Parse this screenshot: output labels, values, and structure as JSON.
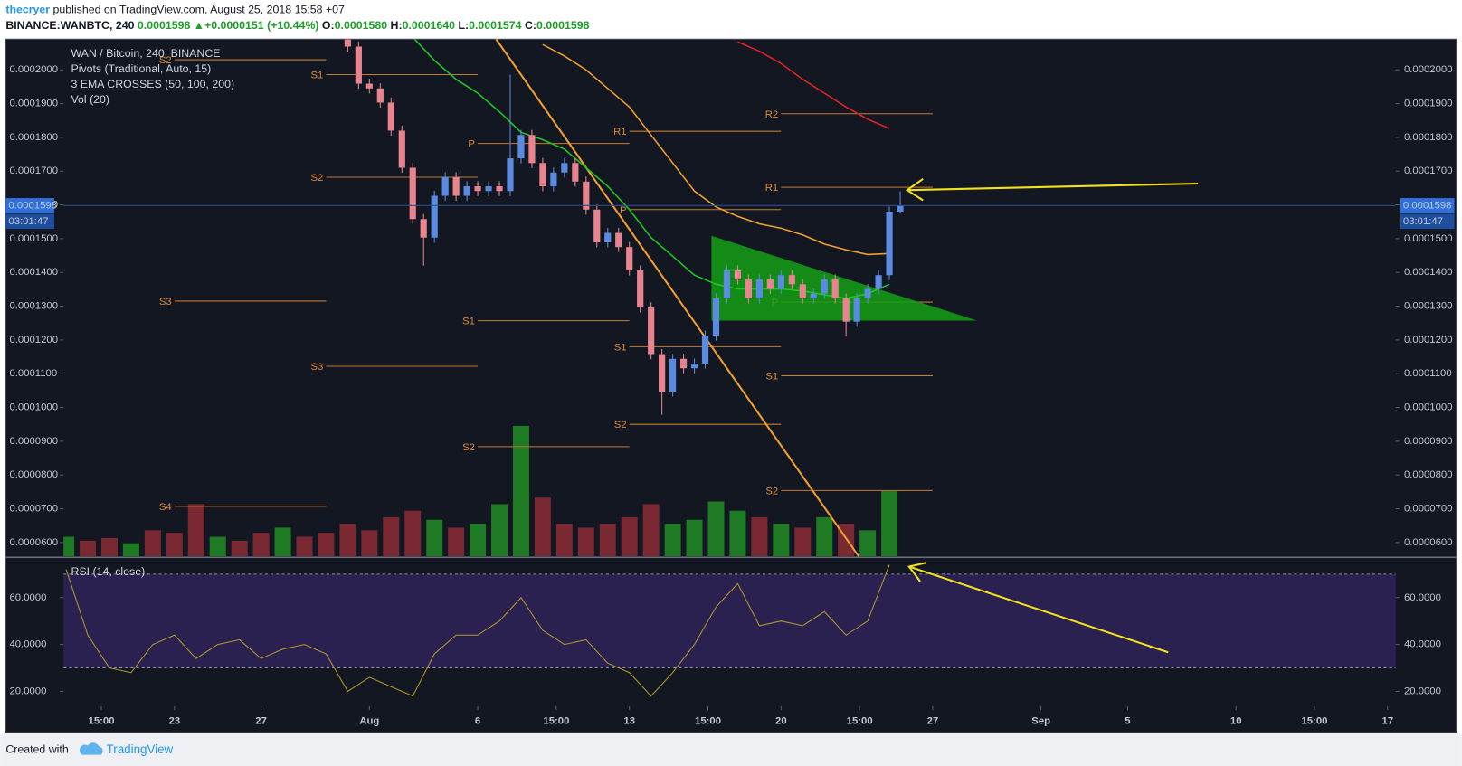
{
  "header": {
    "author": "thecryer",
    "published": "published on TradingView.com, August 25, 2018 15:58 +07",
    "symbol": "BINANCE:WANBTC, 240",
    "last": "0.0001598",
    "arrow": "▲",
    "change": "+0.0000151 (+10.44%)",
    "open_label": "O:",
    "open": "0.0001580",
    "high_label": "H:",
    "high": "0.0001640",
    "low_label": "L:",
    "low": "0.0001574",
    "close_label": "C:",
    "close": "0.0001598"
  },
  "countdown": "03:01:47",
  "footer": {
    "created_with": "Created with",
    "brand": "TradingView"
  },
  "chart_data": [
    {
      "type": "candlestick",
      "legend": [
        "WAN / Bitcoin, 240, BINANCE",
        "Pivots (Traditional, Auto, 15)",
        "3 EMA CROSSES (50, 100, 200)",
        "Vol (20)"
      ],
      "up_color": "#5b8be0",
      "down_color": "#e8848f",
      "xlim": [
        17.88,
        79.37
      ],
      "ylim": [
        5.59e-05,
        0.0002091
      ],
      "yticks": [
        {
          "value": 0.0002,
          "label": "0.0002000"
        },
        {
          "value": 0.00019,
          "label": "0.0001900"
        },
        {
          "value": 0.00018,
          "label": "0.0001800"
        },
        {
          "value": 0.00017,
          "label": "0.0001700"
        },
        {
          "value": 0.00016,
          "label": "0.0001600"
        },
        {
          "value": 0.00015,
          "label": "0.0001500"
        },
        {
          "value": 0.00014,
          "label": "0.0001400"
        },
        {
          "value": 0.00013,
          "label": "0.0001300"
        },
        {
          "value": 0.00012,
          "label": "0.0001200"
        },
        {
          "value": 0.00011,
          "label": "0.0001100"
        },
        {
          "value": 0.0001,
          "label": "0.0001000"
        },
        {
          "value": 9e-05,
          "label": "0.0000900"
        },
        {
          "value": 8e-05,
          "label": "0.0000800"
        },
        {
          "value": 7e-05,
          "label": "0.0000700"
        },
        {
          "value": 6e-05,
          "label": "0.0000600"
        }
      ],
      "x": [
        31,
        31.5,
        32,
        32.5,
        33,
        33.5,
        34,
        34.5,
        35,
        35.5,
        36,
        36.5,
        37,
        37.5,
        38,
        38.5,
        39,
        39.5,
        40,
        40.5,
        41,
        41.5,
        42,
        42.5,
        43,
        43.5,
        44,
        44.5,
        45,
        45.5,
        46,
        46.5,
        47,
        47.5,
        48,
        48.5,
        49,
        49.5,
        50,
        50.5,
        51,
        51.5,
        52,
        52.5,
        53,
        53.5,
        54,
        54.5,
        55,
        55.5,
        56,
        56.5
      ],
      "open": [
        0.000209,
        0.0002069,
        0.0001959,
        0.0001945,
        0.0001903,
        0.000182,
        0.000171,
        0.0001558,
        0.0001503,
        0.0001627,
        0.0001682,
        0.0001627,
        0.0001655,
        0.0001641,
        0.0001655,
        0.0001641,
        0.0001738,
        0.0001807,
        0.0001724,
        0.0001655,
        0.0001696,
        0.0001724,
        0.0001669,
        0.0001586,
        0.0001489,
        0.0001517,
        0.0001475,
        0.0001406,
        0.0001296,
        0.0001158,
        0.0001047,
        0.0001144,
        0.0001116,
        0.000113,
        0.0001213,
        0.0001323,
        0.0001406,
        0.0001379,
        0.0001323,
        0.0001379,
        0.0001351,
        0.0001392,
        0.0001365,
        0.0001323,
        0.0001337,
        0.0001379,
        0.0001323,
        0.0001254,
        0.0001323,
        0.0001351,
        0.0001392,
        0.000158
      ],
      "high": [
        0.0002105,
        0.0002084,
        0.0001974,
        0.000196,
        0.0001918,
        0.0001835,
        0.0001725,
        0.0001573,
        0.0001642,
        0.0001697,
        0.0001697,
        0.000167,
        0.000167,
        0.000167,
        0.000167,
        0.0001986,
        0.0001822,
        0.0001822,
        0.0001739,
        0.0001711,
        0.0001739,
        0.0001739,
        0.0001684,
        0.0001601,
        0.0001532,
        0.0001532,
        0.000149,
        0.0001421,
        0.0001311,
        0.0001173,
        0.0001159,
        0.0001159,
        0.0001145,
        0.0001228,
        0.0001338,
        0.0001421,
        0.0001421,
        0.0001394,
        0.0001394,
        0.0001394,
        0.0001407,
        0.0001407,
        0.000138,
        0.0001352,
        0.0001394,
        0.0001394,
        0.0001338,
        0.0001338,
        0.0001366,
        0.0001407,
        0.0001595,
        0.000164
      ],
      "low": [
        0.0002054,
        0.0001944,
        0.000193,
        0.0001888,
        0.0001805,
        0.0001695,
        0.0001543,
        0.000142,
        0.0001488,
        0.0001612,
        0.0001612,
        0.0001612,
        0.0001626,
        0.0001626,
        0.0001626,
        0.0001626,
        0.0001723,
        0.0001709,
        0.000164,
        0.000164,
        0.0001681,
        0.0001654,
        0.0001571,
        0.0001474,
        0.0001474,
        0.000146,
        0.0001391,
        0.0001281,
        0.0001143,
        9.78e-05,
        0.0001032,
        0.0001101,
        0.0001101,
        0.0001115,
        0.0001198,
        0.0001308,
        0.0001364,
        0.0001308,
        0.0001308,
        0.0001336,
        0.0001336,
        0.000135,
        0.0001308,
        0.0001308,
        0.0001322,
        0.0001308,
        0.000121,
        0.0001239,
        0.0001308,
        0.0001336,
        0.0001377,
        0.0001574
      ],
      "close": [
        0.0002069,
        0.0001959,
        0.0001945,
        0.0001903,
        0.000182,
        0.000171,
        0.0001558,
        0.0001503,
        0.0001627,
        0.0001682,
        0.0001627,
        0.0001655,
        0.0001641,
        0.0001655,
        0.0001641,
        0.0001738,
        0.0001807,
        0.0001724,
        0.0001655,
        0.0001696,
        0.0001724,
        0.0001669,
        0.0001586,
        0.0001489,
        0.0001517,
        0.0001475,
        0.0001406,
        0.0001296,
        0.0001158,
        0.0001047,
        0.0001144,
        0.0001116,
        0.000113,
        0.0001213,
        0.0001323,
        0.0001406,
        0.0001379,
        0.0001323,
        0.0001379,
        0.0001351,
        0.0001392,
        0.0001365,
        0.0001323,
        0.0001337,
        0.0001379,
        0.0001323,
        0.0001254,
        0.0001323,
        0.0001351,
        0.0001392,
        0.000158,
        0.0001598
      ],
      "lines": [
        {
          "color": "#22c722",
          "x": [
            34,
            35,
            36,
            37,
            38,
            39,
            40,
            41,
            42,
            43,
            44,
            45,
            46,
            47,
            48,
            49,
            50,
            51,
            52,
            53,
            54,
            55,
            56
          ],
          "values": [
            0.0002097,
            0.0002028,
            0.0001972,
            0.0001931,
            0.0001876,
            0.0001815,
            0.0001793,
            0.0001765,
            0.000171,
            0.0001655,
            0.0001586,
            0.0001503,
            0.0001448,
            0.0001392,
            0.0001365,
            0.0001351,
            0.0001351,
            0.0001351,
            0.0001345,
            0.0001334,
            0.0001323,
            0.0001337,
            0.0001365
          ]
        },
        {
          "color": "#f0a030",
          "x": [
            40,
            41,
            42,
            43,
            44,
            45,
            46,
            47,
            48,
            49,
            50,
            51,
            52,
            53,
            54,
            55,
            56
          ],
          "values": [
            0.0002075,
            0.0002041,
            0.0002,
            0.0001945,
            0.000189,
            0.0001807,
            0.0001724,
            0.0001641,
            0.0001594,
            0.0001566,
            0.0001544,
            0.0001531,
            0.0001511,
            0.0001484,
            0.0001467,
            0.0001453,
            0.0001456
          ]
        },
        {
          "color": "#e02424",
          "x": [
            49,
            50,
            51,
            52,
            53,
            54,
            55,
            56
          ],
          "values": [
            0.0002083,
            0.0002055,
            0.0002019,
            0.0001972,
            0.0001931,
            0.000189,
            0.0001854,
            0.0001826
          ]
        }
      ],
      "pivot_color": "#c47a34",
      "pivots": [
        {
          "label": "S2",
          "value": 0.000203,
          "x": [
            23,
            30
          ]
        },
        {
          "label": "S3",
          "value": 0.0001315,
          "x": [
            23,
            30
          ]
        },
        {
          "label": "S4",
          "value": 7.07e-05,
          "x": [
            23,
            30
          ]
        },
        {
          "label": "S1",
          "value": 0.0001986,
          "x": [
            30,
            37
          ]
        },
        {
          "label": "S2",
          "value": 0.0001682,
          "x": [
            30,
            37
          ]
        },
        {
          "label": "S3",
          "value": 0.0001122,
          "x": [
            30,
            37
          ]
        },
        {
          "label": "P",
          "value": 0.0001782,
          "x": [
            37,
            44
          ]
        },
        {
          "label": "S1",
          "value": 0.0001257,
          "x": [
            37,
            44
          ]
        },
        {
          "label": "S2",
          "value": 8.84e-05,
          "x": [
            37,
            44
          ]
        },
        {
          "label": "R1",
          "value": 0.0001818,
          "x": [
            44,
            51
          ]
        },
        {
          "label": "P",
          "value": 0.0001586,
          "x": [
            44,
            51
          ]
        },
        {
          "label": "S1",
          "value": 0.000118,
          "x": [
            44,
            51
          ]
        },
        {
          "label": "S2",
          "value": 9.5e-05,
          "x": [
            44,
            51
          ]
        },
        {
          "label": "R2",
          "value": 0.000187,
          "x": [
            51,
            58
          ]
        },
        {
          "label": "R1",
          "value": 0.0001652,
          "x": [
            51,
            58
          ]
        },
        {
          "label": "P",
          "value": 0.0001312,
          "x": [
            51,
            58
          ]
        },
        {
          "label": "S1",
          "value": 0.0001094,
          "x": [
            51,
            58
          ]
        },
        {
          "label": "S2",
          "value": 7.54e-05,
          "x": [
            51,
            58
          ]
        }
      ]
    },
    {
      "type": "bar",
      "xlim": [
        17.88,
        79.37
      ],
      "ylim": [
        0,
        100
      ],
      "x": [
        18,
        19,
        20,
        21,
        22,
        23,
        24,
        25,
        26,
        27,
        28,
        29,
        30,
        31,
        32,
        33,
        34,
        35,
        36,
        37,
        38,
        39,
        40,
        41,
        42,
        43,
        44,
        45,
        46,
        47,
        48,
        49,
        50,
        51,
        52,
        53,
        54,
        55,
        56
      ],
      "values": [
        15,
        12,
        14,
        10,
        20,
        18,
        40,
        15,
        12,
        18,
        22,
        15,
        18,
        25,
        20,
        30,
        35,
        28,
        22,
        25,
        40,
        100,
        45,
        25,
        22,
        25,
        30,
        40,
        25,
        28,
        42,
        35,
        30,
        25,
        22,
        30,
        25,
        20,
        50
      ],
      "colors": [
        "#1f7a24",
        "#7a2832",
        "#7a2832",
        "#1f7a24",
        "#7a2832",
        "#7a2832",
        "#7a2832",
        "#1f7a24",
        "#7a2832",
        "#7a2832",
        "#1f7a24",
        "#7a2832",
        "#7a2832",
        "#7a2832",
        "#7a2832",
        "#7a2832",
        "#7a2832",
        "#1f7a24",
        "#7a2832",
        "#1f7a24",
        "#1f7a24",
        "#1f7a24",
        "#7a2832",
        "#7a2832",
        "#7a2832",
        "#7a2832",
        "#7a2832",
        "#7a2832",
        "#1f7a24",
        "#1f7a24",
        "#1f7a24",
        "#1f7a24",
        "#7a2832",
        "#1f7a24",
        "#7a2832",
        "#1f7a24",
        "#7a2832",
        "#1f7a24",
        "#1f7a24"
      ]
    },
    {
      "type": "line",
      "legend": "RSI (14, close)",
      "color": "#b39a2c",
      "band_color": "#2b2150",
      "xlim": [
        17.88,
        79.37
      ],
      "ylim": [
        13.6,
        76.8
      ],
      "band": [
        30,
        70
      ],
      "yticks": [
        {
          "value": 60,
          "label": "60.0000"
        },
        {
          "value": 40,
          "label": "40.0000"
        },
        {
          "value": 20,
          "label": "20.0000"
        }
      ],
      "xticks": [
        {
          "value": 19.625,
          "label": "15:00"
        },
        {
          "value": 23,
          "label": "23"
        },
        {
          "value": 27,
          "label": "27"
        },
        {
          "value": 32,
          "label": "Aug"
        },
        {
          "value": 37,
          "label": "6"
        },
        {
          "value": 40.625,
          "label": "15:00"
        },
        {
          "value": 44,
          "label": "13"
        },
        {
          "value": 47.625,
          "label": "15:00"
        },
        {
          "value": 51,
          "label": "20"
        },
        {
          "value": 54.625,
          "label": "15:00"
        },
        {
          "value": 58,
          "label": "27"
        },
        {
          "value": 63,
          "label": "Sep"
        },
        {
          "value": 67,
          "label": "5"
        },
        {
          "value": 72,
          "label": "10"
        },
        {
          "value": 75.625,
          "label": "15:00"
        },
        {
          "value": 79,
          "label": "17"
        }
      ],
      "x": [
        18,
        19,
        20,
        21,
        22,
        23,
        24,
        25,
        26,
        27,
        28,
        29,
        30,
        31,
        32,
        33,
        34,
        35,
        36,
        37,
        38,
        39,
        40,
        41,
        42,
        43,
        44,
        45,
        46,
        47,
        48,
        49,
        50,
        51,
        52,
        53,
        54,
        55,
        56
      ],
      "values": [
        72,
        44,
        30,
        28,
        40,
        44,
        34,
        40,
        42,
        34,
        38,
        40,
        36,
        20,
        26,
        22,
        18,
        36,
        44,
        44,
        50,
        60,
        46,
        40,
        42,
        32,
        28,
        18,
        28,
        40,
        56,
        66,
        48,
        50,
        48,
        54,
        44,
        50,
        74
      ]
    }
  ]
}
